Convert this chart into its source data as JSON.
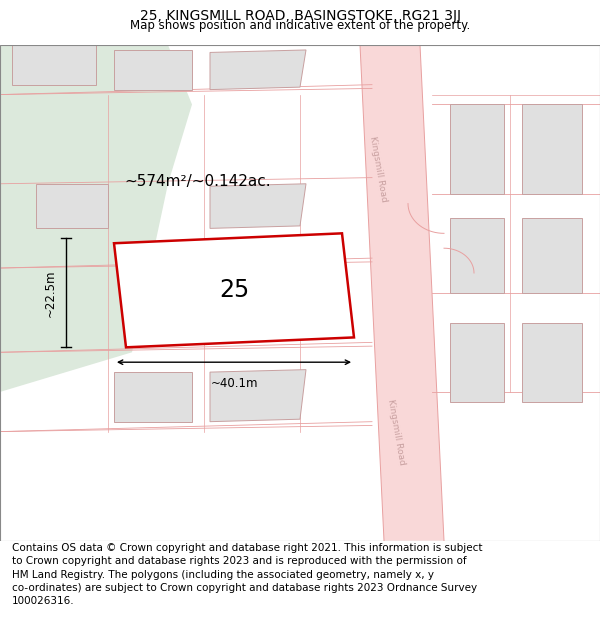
{
  "title": "25, KINGSMILL ROAD, BASINGSTOKE, RG21 3JJ",
  "subtitle": "Map shows position and indicative extent of the property.",
  "title_fontsize": 10,
  "subtitle_fontsize": 8.5,
  "footer_text": "Contains OS data © Crown copyright and database right 2021. This information is subject\nto Crown copyright and database rights 2023 and is reproduced with the permission of\nHM Land Registry. The polygons (including the associated geometry, namely x, y\nco-ordinates) are subject to Crown copyright and database rights 2023 Ordnance Survey\n100026316.",
  "footer_fontsize": 7.5,
  "bg_color": "#ffffff",
  "road_fill": "#f9d8d8",
  "road_line_color": "#e8a0a0",
  "road_label_color": "#c8a0a0",
  "building_fill": "#e0e0e0",
  "building_edge": "#c8a0a0",
  "subject_fill": "#ffffff",
  "subject_edge": "#cc0000",
  "subject_edge_width": 1.8,
  "green_fill": "#dce9dc",
  "dim_color": "#000000",
  "area_text": "~574m²/~0.142ac.",
  "width_text": "~40.1m",
  "height_text": "~22.5m",
  "number_text": "25",
  "road_label": "Kingsmill Road"
}
